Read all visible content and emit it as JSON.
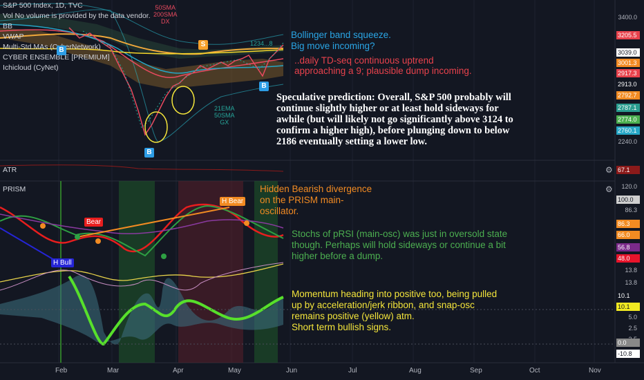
{
  "header": {
    "title": "S&P 500 Index, 1D, TVC"
  },
  "legend": {
    "vol": "Vol  No volume is provided by the data vendor.",
    "bb": "BB",
    "vwap": "VWAP",
    "multi": "Multi-Std.MAs (CyberNetwork)",
    "cyber": "CYBER ENSEMBLE [PREMIUM]",
    "ichi": "Ichicloud (CyNet)"
  },
  "chart_labels": {
    "sma_top": "50SMA",
    "sma_mid": "200SMA",
    "sma_dx": "DX",
    "ema1": "21EMA",
    "ema2": "50SMA",
    "ema3": "GX",
    "td": "1234...8",
    "h_bull": "H Bull",
    "bear": "Bear",
    "h_bear": "H Bear",
    "sell": "S",
    "buy": "B",
    "buy2": "B",
    "buy3": "B"
  },
  "notes": {
    "bb1": "Bollinger band squeeze.",
    "bb2": "Big move incoming?",
    "td1": "..daily TD-seq continuous uptrend",
    "td2": "approaching a 9; plausible dump incoming.",
    "spec1": "Speculative prediction: Overall, S&P 500 probably will",
    "spec2": "continue slightly higher or at least hold sideways for",
    "spec3": "awhile (but will likely not go significantly above 3124 to",
    "spec4": "confirm a higher high), before plunging down to below",
    "spec5": "2186 eventually setting a lower low.",
    "hid1": "Hidden Bearish divergence",
    "hid2": "on the PRISM main-",
    "hid3": "oscillator.",
    "sto1": "Stochs of pRSI (main-osc) was just in oversold state",
    "sto2": "though. Perhaps will hold sideways or continue a bit",
    "sto3": "higher before a dump.",
    "mom1": "Momentum heading into positive too, being pulled",
    "mom2": "up by acceleration/jerk ribbon, and snap-osc",
    "mom3": "remains positive (yellow) atm.",
    "mom4": "Short term bullish signs."
  },
  "panes": {
    "atr": "ATR",
    "prism": "PRISM"
  },
  "price_axis": [
    {
      "v": "3400.0",
      "type": "text"
    },
    {
      "v": "3205.5",
      "color": "#e8424c"
    },
    {
      "v": "3039.0",
      "color": "#ffffff",
      "fg": "#131722"
    },
    {
      "v": "3001.3",
      "color": "#f28b22"
    },
    {
      "v": "2917.3",
      "color": "#e8424c"
    },
    {
      "v": "2913.0",
      "color": "#131722",
      "fg": "#ffffff"
    },
    {
      "v": "2792.7",
      "color": "#f28b22"
    },
    {
      "v": "2787.1",
      "color": "#2a9d8f"
    },
    {
      "v": "2774.0",
      "color": "#4caf50"
    },
    {
      "v": "2760.1",
      "color": "#26a6c6"
    },
    {
      "v": "2240.0",
      "type": "text"
    },
    {
      "v": "67.1",
      "color": "#8b1a1a"
    },
    {
      "v": "120.0",
      "type": "text"
    },
    {
      "v": "100.0",
      "color": "#cfcfcf",
      "fg": "#131722"
    },
    {
      "v": "86.3",
      "type": "text"
    },
    {
      "v": "86.3",
      "color": "#f28b22"
    },
    {
      "v": "66.0",
      "color": "#f28b22"
    },
    {
      "v": "56.8",
      "color": "#7b2a8a"
    },
    {
      "v": "48.0",
      "color": "#e8142b"
    },
    {
      "v": "13.8",
      "type": "text"
    },
    {
      "v": "13.8",
      "type": "text"
    },
    {
      "v": "10.1",
      "color": "#131722",
      "fg": "#ffffff"
    },
    {
      "v": "10.1",
      "color": "#f2ea22",
      "fg": "#131722"
    },
    {
      "v": "5.0",
      "type": "text"
    },
    {
      "v": "2.5",
      "type": "text"
    },
    {
      "v": "2.5",
      "type": "text"
    },
    {
      "v": "0.0",
      "color": "#888888"
    },
    {
      "v": "-10.8",
      "color": "#ffffff",
      "fg": "#131722"
    }
  ],
  "time_axis": [
    "Feb",
    "Mar",
    "Apr",
    "May",
    "Jun",
    "Jul",
    "Aug",
    "Sep",
    "Oct",
    "Nov"
  ]
}
